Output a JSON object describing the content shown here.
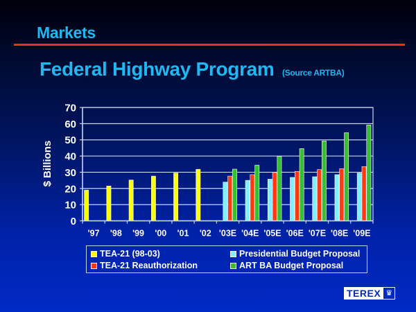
{
  "slide": {
    "section_title": "Markets",
    "title": "Federal Highway Program",
    "source_note": "(Source ARTBA)",
    "logo_text": "TEREX",
    "logo_icon": "crown-icon"
  },
  "colors": {
    "title": "#1fb8f0",
    "rule": "#e8321e",
    "tea21": "#ffff00",
    "presidential": "#7ff0ff",
    "reauthorization": "#ff3a10",
    "artba": "#36c030"
  },
  "chart_data": {
    "type": "bar",
    "title": "Federal Highway Program (Source ARTBA)",
    "xlabel": "",
    "ylabel": "$ Billions",
    "ylim": [
      0,
      70
    ],
    "yticks": [
      0,
      10,
      20,
      30,
      40,
      50,
      60,
      70
    ],
    "grid": true,
    "legend_position": "bottom",
    "categories": [
      "'97",
      "'98",
      "'99",
      "'00",
      "'01",
      "'02",
      "'03E",
      "'04E",
      "'05E",
      "'06E",
      "'07E",
      "'08E",
      "'09E"
    ],
    "series": [
      {
        "name": "TEA-21 (98-03)",
        "color": "#ffff00",
        "values": [
          19.0,
          21.5,
          25.2,
          27.6,
          29.5,
          31.8,
          null,
          null,
          null,
          null,
          null,
          null,
          null
        ]
      },
      {
        "name": "Presidential Budget Proposal",
        "color": "#7ff0ff",
        "values": [
          null,
          null,
          null,
          null,
          null,
          null,
          23.9,
          25.0,
          25.7,
          26.8,
          27.2,
          28.5,
          29.5
        ]
      },
      {
        "name": "TEA-21 Reauthorization",
        "color": "#ff3a10",
        "values": [
          null,
          null,
          null,
          null,
          null,
          null,
          27.6,
          28.5,
          29.8,
          30.5,
          31.6,
          32.2,
          33.5
        ]
      },
      {
        "name": "ART BA Budget Proposal",
        "color": "#36c030",
        "values": [
          null,
          null,
          null,
          null,
          null,
          null,
          31.9,
          34.4,
          39.8,
          44.6,
          49.3,
          54.4,
          59.2
        ]
      }
    ]
  },
  "legend": [
    {
      "label": "TEA-21 (98-03)",
      "color": "#ffff00"
    },
    {
      "label": "Presidential Budget Proposal",
      "color": "#7ff0ff"
    },
    {
      "label": "TEA-21 Reauthorization",
      "color": "#ff3a10"
    },
    {
      "label": "ART BA Budget Proposal",
      "color": "#36c030"
    }
  ]
}
